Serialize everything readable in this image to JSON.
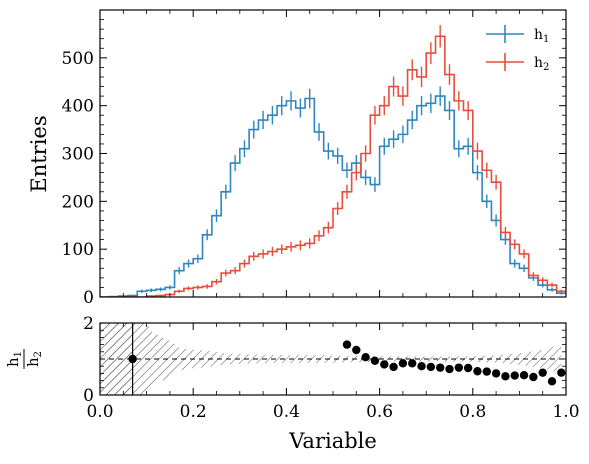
{
  "chart_data": [
    {
      "type": "line",
      "panel": "main",
      "ylabel": "Entries",
      "xlim": [
        0.0,
        1.0
      ],
      "ylim": [
        0,
        600
      ],
      "yticks": [
        0,
        100,
        200,
        300,
        400,
        500
      ],
      "step": "histogram",
      "bin_width": 0.02,
      "x_bin_edges_start": 0.0,
      "legend_position": "top-right",
      "series": [
        {
          "name": "h",
          "name_sub": "1",
          "color": "#2e86c1",
          "values": [
            0,
            1,
            2,
            3,
            12,
            14,
            16,
            20,
            55,
            70,
            80,
            130,
            170,
            220,
            280,
            310,
            350,
            370,
            380,
            400,
            410,
            395,
            415,
            345,
            305,
            295,
            265,
            280,
            250,
            235,
            315,
            330,
            340,
            370,
            400,
            405,
            420,
            390,
            310,
            315,
            260,
            200,
            160,
            120,
            70,
            60,
            40,
            25,
            15,
            8
          ]
        },
        {
          "name": "h",
          "name_sub": "2",
          "color": "#e74c3c",
          "values": [
            0,
            0,
            0,
            0,
            0,
            2,
            3,
            5,
            12,
            18,
            20,
            22,
            32,
            50,
            55,
            70,
            85,
            90,
            95,
            100,
            105,
            108,
            112,
            128,
            145,
            185,
            220,
            260,
            300,
            380,
            400,
            440,
            420,
            475,
            460,
            510,
            545,
            465,
            410,
            390,
            305,
            265,
            240,
            135,
            110,
            90,
            45,
            35,
            25,
            12
          ]
        }
      ]
    },
    {
      "type": "scatter",
      "panel": "ratio",
      "xlabel": "Variable",
      "ylabel_num": "h",
      "ylabel_num_sub": "1",
      "ylabel_den": "h",
      "ylabel_den_sub": "2",
      "xlim": [
        0.0,
        1.0
      ],
      "ylim": [
        0,
        2
      ],
      "yticks": [
        0,
        2
      ],
      "xticks": [
        0.0,
        0.2,
        0.4,
        0.6,
        0.8,
        1.0
      ],
      "xtick_labels": [
        "0.0",
        "0.2",
        "0.4",
        "0.6",
        "0.8",
        "1.0"
      ],
      "reference_line": 1,
      "points": [
        {
          "x": 0.07,
          "y": 1.0,
          "yerr": 2.5
        },
        {
          "x": 0.53,
          "y": 1.4
        },
        {
          "x": 0.55,
          "y": 1.25
        },
        {
          "x": 0.57,
          "y": 1.05
        },
        {
          "x": 0.59,
          "y": 0.95
        },
        {
          "x": 0.61,
          "y": 0.85
        },
        {
          "x": 0.63,
          "y": 0.78
        },
        {
          "x": 0.65,
          "y": 0.88
        },
        {
          "x": 0.67,
          "y": 0.88
        },
        {
          "x": 0.69,
          "y": 0.8
        },
        {
          "x": 0.71,
          "y": 0.78
        },
        {
          "x": 0.73,
          "y": 0.76
        },
        {
          "x": 0.75,
          "y": 0.72
        },
        {
          "x": 0.77,
          "y": 0.76
        },
        {
          "x": 0.79,
          "y": 0.75
        },
        {
          "x": 0.81,
          "y": 0.66
        },
        {
          "x": 0.83,
          "y": 0.65
        },
        {
          "x": 0.85,
          "y": 0.6
        },
        {
          "x": 0.87,
          "y": 0.52
        },
        {
          "x": 0.89,
          "y": 0.54
        },
        {
          "x": 0.91,
          "y": 0.55
        },
        {
          "x": 0.93,
          "y": 0.5
        },
        {
          "x": 0.95,
          "y": 0.62
        },
        {
          "x": 0.97,
          "y": 0.38
        },
        {
          "x": 0.99,
          "y": 0.62
        }
      ]
    }
  ]
}
